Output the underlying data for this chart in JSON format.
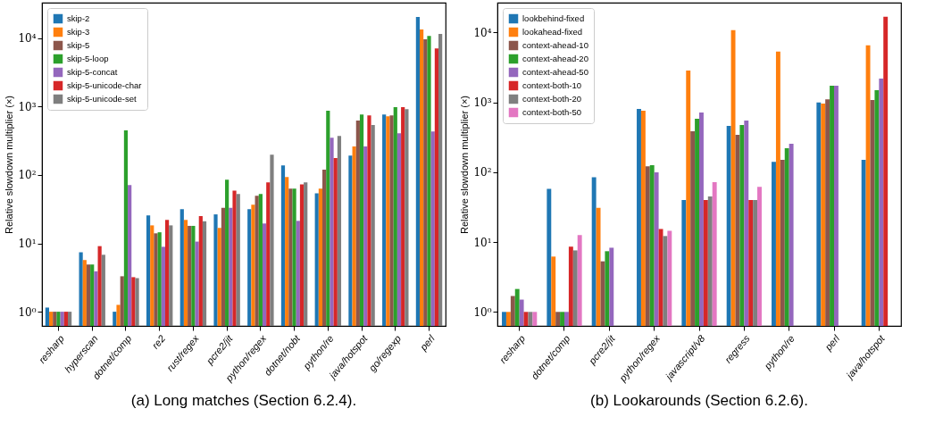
{
  "chart_data": [
    {
      "type": "bar",
      "title": "(a) Long matches (Section 6.2.4).",
      "ylabel": "Relative slowdown multiplier (×)",
      "log": true,
      "legend": "top left",
      "categories": [
        "resharp",
        "hyperscan",
        "dotnet/comp",
        "re2",
        "rust/regex",
        "pcre2/jit",
        "python/regex",
        "dotnet/nobt",
        "python/re",
        "java/hotspot",
        "go/regexp",
        "perl"
      ],
      "ylim": [
        0.62,
        33000
      ],
      "yticks": [
        {
          "value": 1,
          "label": "10⁰"
        },
        {
          "value": 10,
          "label": "10¹"
        },
        {
          "value": 100,
          "label": "10²"
        },
        {
          "value": 1000,
          "label": "10³"
        },
        {
          "value": 10000,
          "label": "10⁴"
        }
      ],
      "series": [
        {
          "name": "skip-2",
          "color": "#1f77b4",
          "values": [
            1.15,
            7.4,
            1.0,
            25.6,
            31.6,
            26.5,
            31.6,
            138,
            54,
            192,
            767,
            20400
          ]
        },
        {
          "name": "skip-3",
          "color": "#ff7f0e",
          "values": [
            1.0,
            5.7,
            1.26,
            18.3,
            22,
            16.8,
            36.7,
            93,
            63,
            260,
            722,
            13400
          ]
        },
        {
          "name": "skip-5",
          "color": "#8c564b",
          "values": [
            1.0,
            4.9,
            3.3,
            14,
            18,
            33,
            49.6,
            63,
            119,
            622,
            741,
            9600
          ]
        },
        {
          "name": "skip-5-loop",
          "color": "#2ca02c",
          "values": [
            1.0,
            4.9,
            447,
            14.5,
            18,
            85,
            52.6,
            63,
            870,
            767,
            978,
            10800
          ]
        },
        {
          "name": "skip-5-concat",
          "color": "#9467bd",
          "values": [
            1.0,
            3.9,
            71,
            8.9,
            10.6,
            33,
            19.5,
            21.3,
            351,
            260,
            408,
            433
          ]
        },
        {
          "name": "skip-5-unicode-char",
          "color": "#d62728",
          "values": [
            1.0,
            9.1,
            3.2,
            22,
            25,
            59,
            78,
            73,
            176,
            741,
            978,
            7060
          ]
        },
        {
          "name": "skip-5-unicode-set",
          "color": "#7f7f7f",
          "values": [
            1.0,
            6.8,
            3.1,
            18.3,
            21,
            52.6,
            198,
            78,
            372,
            535,
            918,
            11500
          ]
        }
      ]
    },
    {
      "type": "bar",
      "title": "(b) Lookarounds (Section 6.2.6).",
      "ylabel": "Relative slowdown multiplier (×)",
      "log": true,
      "legend": "top left",
      "categories": [
        "resharp",
        "dotnet/comp",
        "pcre2/jit",
        "python/regex",
        "javascript/v8",
        "regress",
        "python/re",
        "perl",
        "java/hotspot"
      ],
      "ylim": [
        0.63,
        26800
      ],
      "yticks": [
        {
          "value": 1,
          "label": "10⁰"
        },
        {
          "value": 10,
          "label": "10¹"
        },
        {
          "value": 100,
          "label": "10²"
        },
        {
          "value": 1000,
          "label": "10³"
        },
        {
          "value": 10000,
          "label": "10⁴"
        }
      ],
      "series": [
        {
          "name": "lookbehind-fixed",
          "color": "#1f77b4",
          "values": [
            1.0,
            58,
            85,
            808,
            40,
            460,
            141,
            1000,
            150
          ]
        },
        {
          "name": "lookahead-fixed",
          "color": "#ff7f0e",
          "values": [
            1.0,
            6.2,
            31,
            760,
            2870,
            10800,
            5330,
            962,
            6560
          ]
        },
        {
          "name": "context-ahead-10",
          "color": "#8c564b",
          "values": [
            1.69,
            1.0,
            5.3,
            122,
            385,
            343,
            150,
            1110,
            1080
          ]
        },
        {
          "name": "context-ahead-20",
          "color": "#2ca02c",
          "values": [
            2.13,
            1.0,
            7.4,
            126,
            584,
            474,
            220,
            1740,
            1500
          ]
        },
        {
          "name": "context-ahead-50",
          "color": "#9467bd",
          "values": [
            1.5,
            1.0,
            8.3,
            100,
            717,
            550,
            255,
            1740,
            2200
          ]
        },
        {
          "name": "context-both-10",
          "color": "#d62728",
          "values": [
            1.0,
            8.6,
            null,
            15.4,
            40,
            40,
            null,
            null,
            16900
          ]
        },
        {
          "name": "context-both-20",
          "color": "#7f7f7f",
          "values": [
            1.0,
            7.6,
            null,
            12.2,
            45,
            40,
            null,
            null,
            null
          ]
        },
        {
          "name": "context-both-50",
          "color": "#e377c2",
          "values": [
            1.0,
            12.6,
            null,
            14.5,
            72,
            62,
            null,
            null,
            null
          ]
        }
      ]
    }
  ]
}
